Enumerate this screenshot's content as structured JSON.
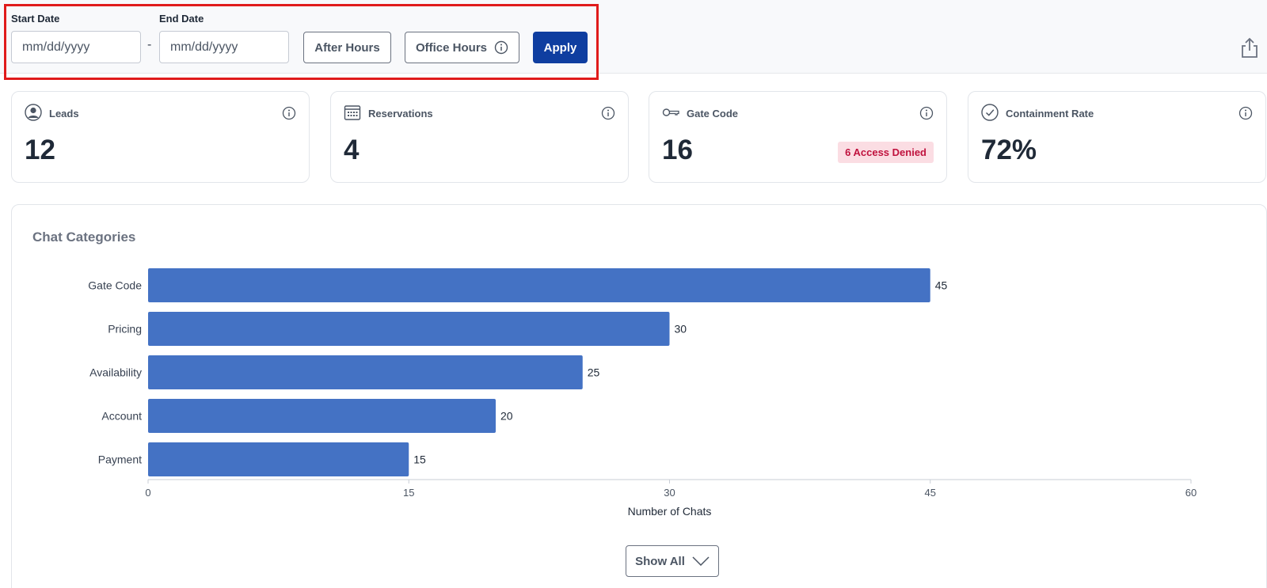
{
  "filters": {
    "start_date_label": "Start Date",
    "end_date_label": "End Date",
    "start_date_placeholder": "mm/dd/yyyy",
    "end_date_placeholder": "mm/dd/yyyy",
    "start_date_value": "",
    "end_date_value": "",
    "separator": "-",
    "after_hours_label": "After Hours",
    "office_hours_label": "Office Hours",
    "apply_label": "Apply"
  },
  "toolbar": {
    "share_icon": "share-icon"
  },
  "metrics": [
    {
      "label": "Leads",
      "value": "12",
      "icon": "user-circle-icon"
    },
    {
      "label": "Reservations",
      "value": "4",
      "icon": "calendar-icon"
    },
    {
      "label": "Gate Code",
      "value": "16",
      "icon": "key-icon",
      "badge": "6 Access Denied"
    },
    {
      "label": "Containment Rate",
      "value": "72%",
      "icon": "check-circle-icon"
    }
  ],
  "chart_section": {
    "title": "Chat Categories",
    "show_all_label": "Show All"
  },
  "chart_data": {
    "type": "bar",
    "orientation": "horizontal",
    "categories": [
      "Gate Code",
      "Pricing",
      "Availability",
      "Account",
      "Payment"
    ],
    "values": [
      45,
      30,
      25,
      20,
      15
    ],
    "xlabel": "Number of Chats",
    "xlim": [
      0,
      60
    ],
    "xticks": [
      0,
      15,
      30,
      45,
      60
    ],
    "bar_color": "#4472c4",
    "data_labels": true,
    "grid": false
  },
  "colors": {
    "accent": "#0f3ea0",
    "highlight_border": "#e01b1b",
    "badge_bg": "#fbdde3",
    "badge_text": "#c0123e"
  }
}
